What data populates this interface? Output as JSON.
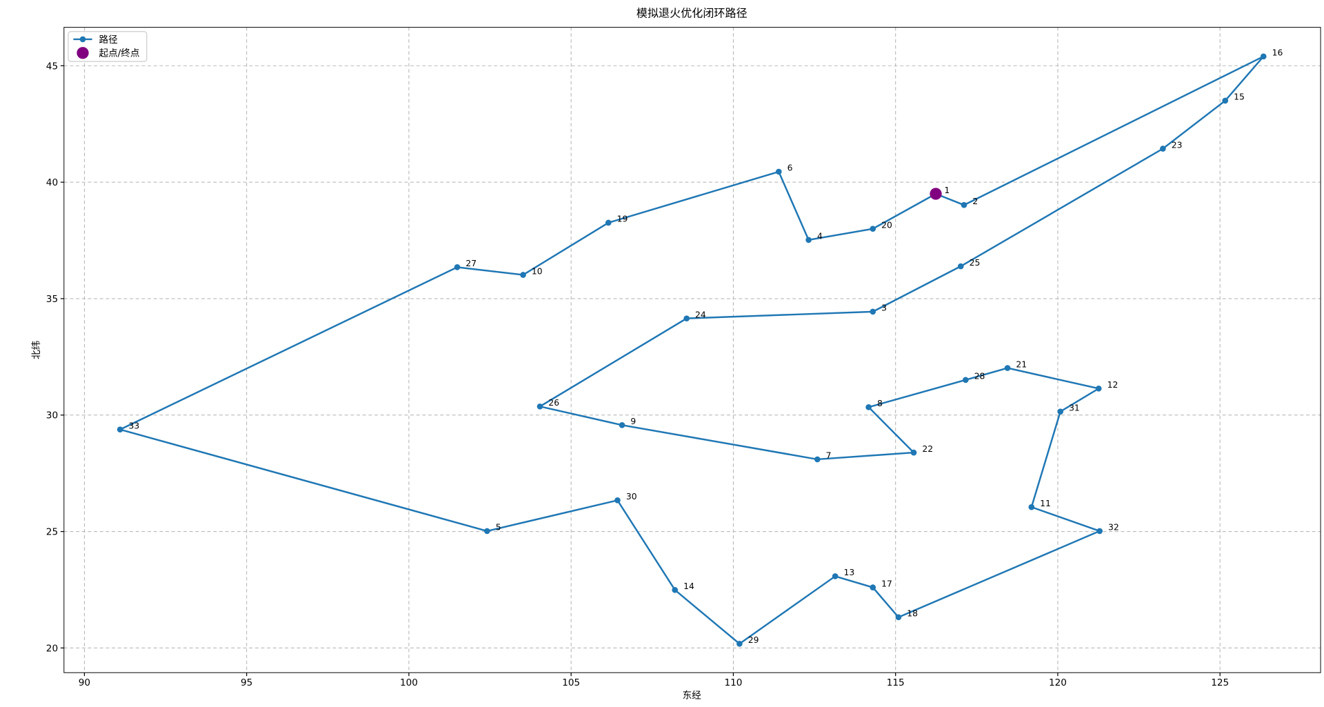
{
  "chart_data": {
    "type": "line",
    "title": "模拟退火优化闭环路径",
    "x_label": "东经",
    "y_label": "北纬",
    "x": [
      116.24,
      117.11,
      126.34,
      125.16,
      123.24,
      117.01,
      114.3,
      108.56,
      104.04,
      106.57,
      112.59,
      115.56,
      114.17,
      117.16,
      118.45,
      121.26,
      120.08,
      119.19,
      121.29,
      115.09,
      114.3,
      113.14,
      110.19,
      108.2,
      106.43,
      102.41,
      91.1,
      101.49,
      103.52,
      106.15,
      111.4,
      112.32,
      114.3
    ],
    "series": [
      {
        "name": "路径",
        "color": "#1f77b4",
        "values": [
          39.5,
          39.02,
          45.4,
          43.5,
          41.44,
          36.39,
          34.44,
          34.15,
          30.37,
          29.57,
          28.1,
          28.39,
          30.34,
          31.51,
          32.02,
          31.14,
          30.15,
          26.05,
          25.02,
          21.32,
          22.6,
          23.08,
          20.18,
          22.49,
          26.34,
          25.02,
          29.38,
          36.35,
          36.02,
          38.26,
          40.45,
          37.52,
          38.0
        ],
        "point_labels": [
          "1",
          "2",
          "16",
          "15",
          "23",
          "25",
          "3",
          "24",
          "26",
          "9",
          "7",
          "22",
          "8",
          "28",
          "21",
          "12",
          "31",
          "11",
          "32",
          "18",
          "17",
          "13",
          "29",
          "14",
          "30",
          "5",
          "33",
          "27",
          "10",
          "19",
          "6",
          "4",
          "20"
        ]
      }
    ],
    "start_marker": {
      "name": "起点/终点",
      "color": "#800080"
    },
    "xlim": [
      89.37,
      128.1
    ],
    "ylim": [
      18.94,
      46.65
    ],
    "xticks": [
      90,
      95,
      100,
      105,
      110,
      115,
      120,
      125
    ],
    "yticks": [
      20,
      25,
      30,
      35,
      40,
      45
    ],
    "grid": true,
    "legend": "upper left"
  }
}
